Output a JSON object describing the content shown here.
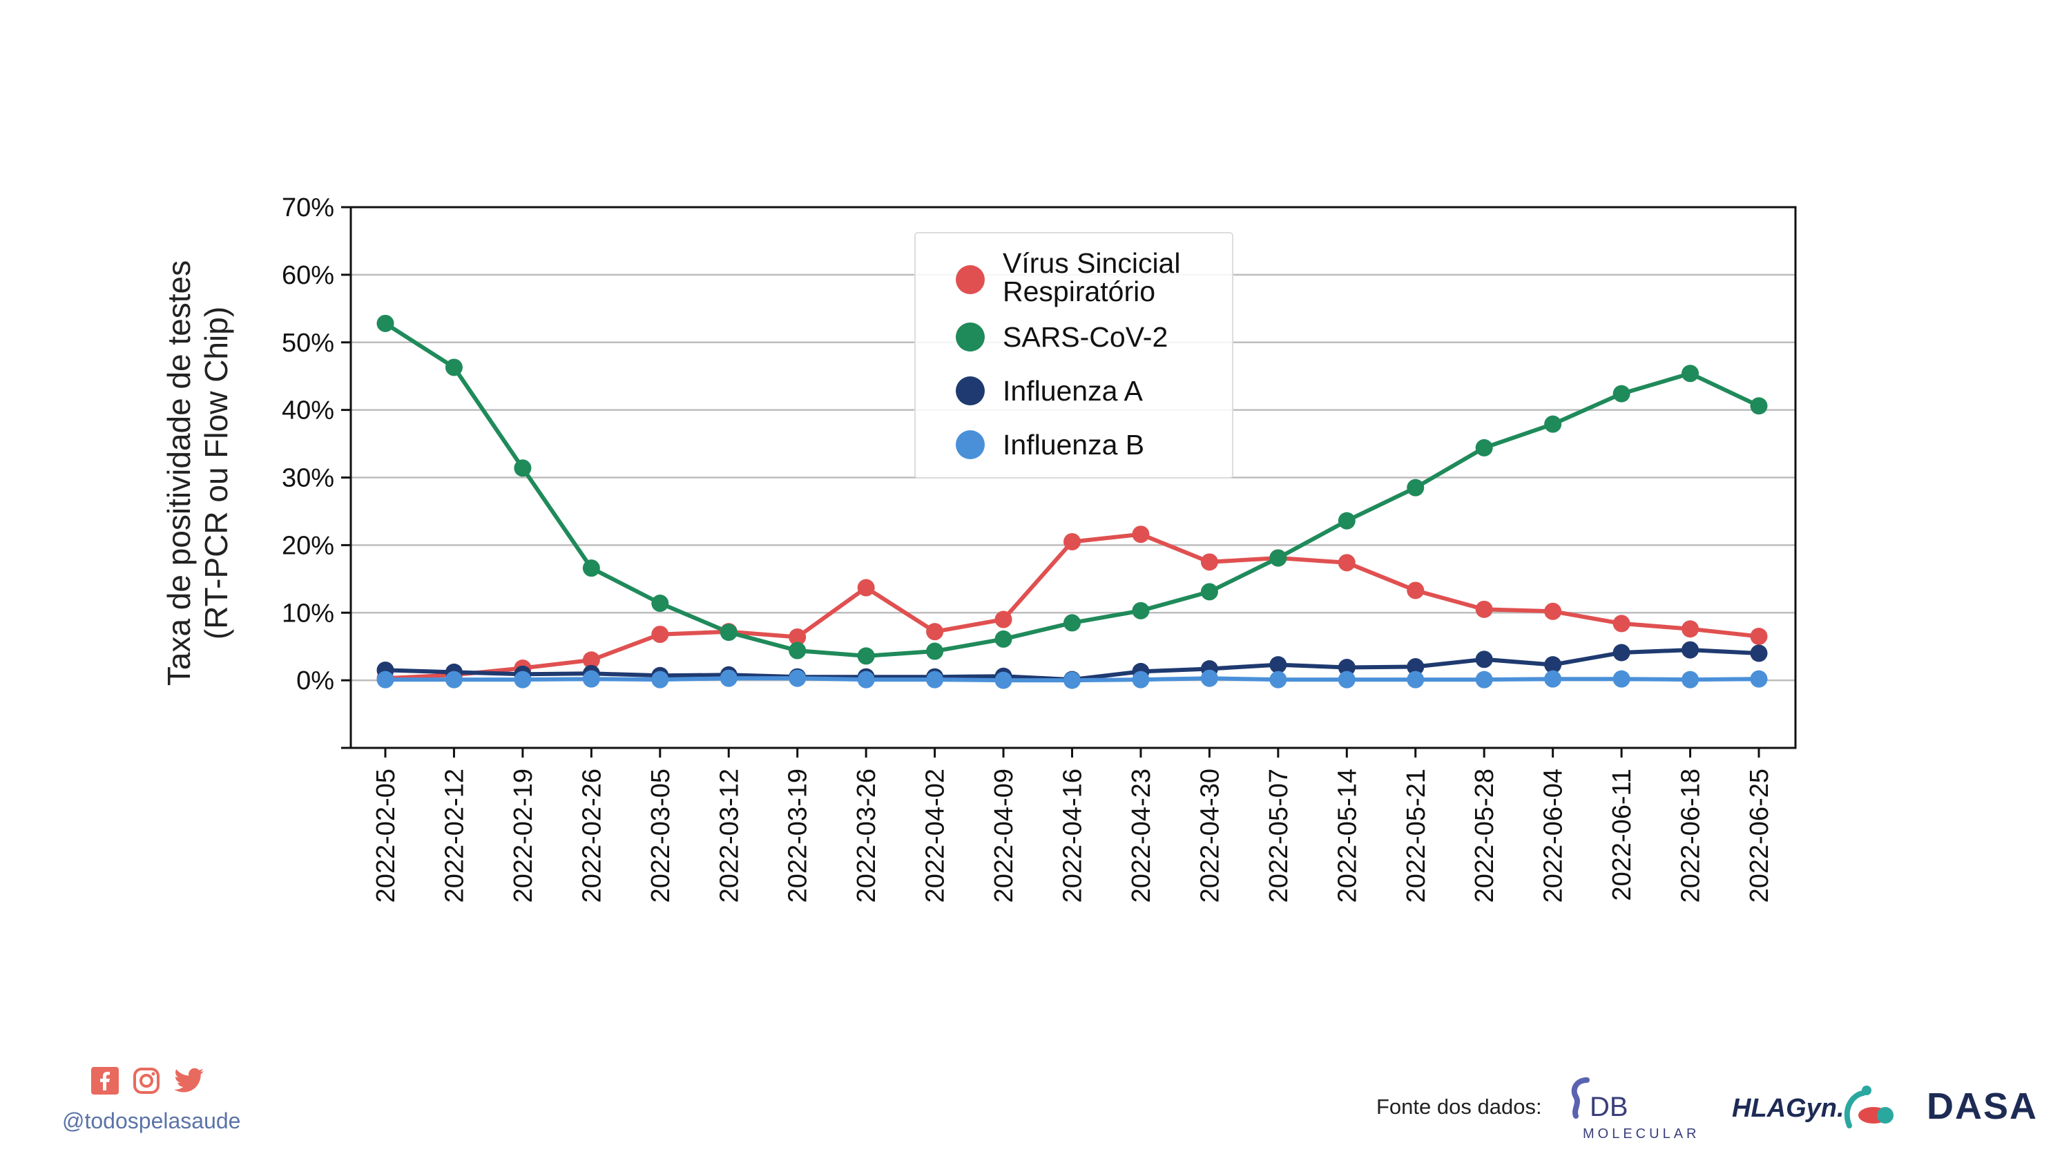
{
  "chart_data": {
    "type": "line",
    "ylabel_line1": "Taxa de positividade de testes",
    "ylabel_line2": "(RT-PCR ou Flow Chip)",
    "ylim": [
      -10,
      70
    ],
    "yticks": [
      0,
      10,
      20,
      30,
      40,
      50,
      60,
      70
    ],
    "ytick_labels": [
      "0%",
      "10%",
      "20%",
      "30%",
      "40%",
      "50%",
      "60%",
      "70%"
    ],
    "grid": "horizontal",
    "legend_position": "top-center",
    "x": [
      "2022-02-05",
      "2022-02-12",
      "2022-02-19",
      "2022-02-26",
      "2022-03-05",
      "2022-03-12",
      "2022-03-19",
      "2022-03-26",
      "2022-04-02",
      "2022-04-09",
      "2022-04-16",
      "2022-04-23",
      "2022-04-30",
      "2022-05-07",
      "2022-05-14",
      "2022-05-21",
      "2022-05-28",
      "2022-06-04",
      "2022-06-11",
      "2022-06-18",
      "2022-06-25"
    ],
    "series": [
      {
        "name_line1": "Vírus Sincicial",
        "name_line2": "Respiratório",
        "color": "#e05050",
        "values": [
          0.3,
          0.8,
          1.8,
          3.0,
          6.8,
          7.2,
          6.4,
          13.7,
          7.2,
          9.0,
          20.5,
          21.6,
          17.5,
          18.1,
          17.4,
          13.3,
          10.5,
          10.2,
          8.4,
          7.6,
          6.5
        ]
      },
      {
        "name": "SARS-CoV-2",
        "color": "#1f8a5a",
        "values": [
          52.8,
          46.3,
          31.4,
          16.6,
          11.4,
          7.1,
          4.4,
          3.6,
          4.3,
          6.1,
          8.5,
          10.3,
          13.1,
          18.1,
          23.6,
          28.5,
          34.4,
          37.9,
          42.4,
          45.4,
          40.6
        ]
      },
      {
        "name": "Influenza A",
        "color": "#1f3a70",
        "values": [
          1.5,
          1.2,
          0.9,
          1.0,
          0.7,
          0.8,
          0.5,
          0.5,
          0.5,
          0.6,
          0.1,
          1.3,
          1.7,
          2.3,
          1.9,
          2.0,
          3.1,
          2.3,
          4.1,
          4.5,
          4.0
        ]
      },
      {
        "name": "Influenza B",
        "color": "#4a90d9",
        "values": [
          0.1,
          0.1,
          0.1,
          0.2,
          0.1,
          0.3,
          0.3,
          0.1,
          0.1,
          0.0,
          0.0,
          0.1,
          0.3,
          0.1,
          0.1,
          0.1,
          0.1,
          0.2,
          0.2,
          0.1,
          0.2
        ]
      }
    ]
  },
  "footer": {
    "handle": "@todospelasaude",
    "source_label": "Fonte dos dados:",
    "logos": {
      "db_text": "DB",
      "db_sub": "MOLECULAR",
      "hlagyn": "HLAGyn.",
      "dasa": "DASA"
    },
    "icons": [
      "facebook-icon",
      "instagram-icon",
      "twitter-icon"
    ],
    "accent_color": "#e86a5e"
  }
}
